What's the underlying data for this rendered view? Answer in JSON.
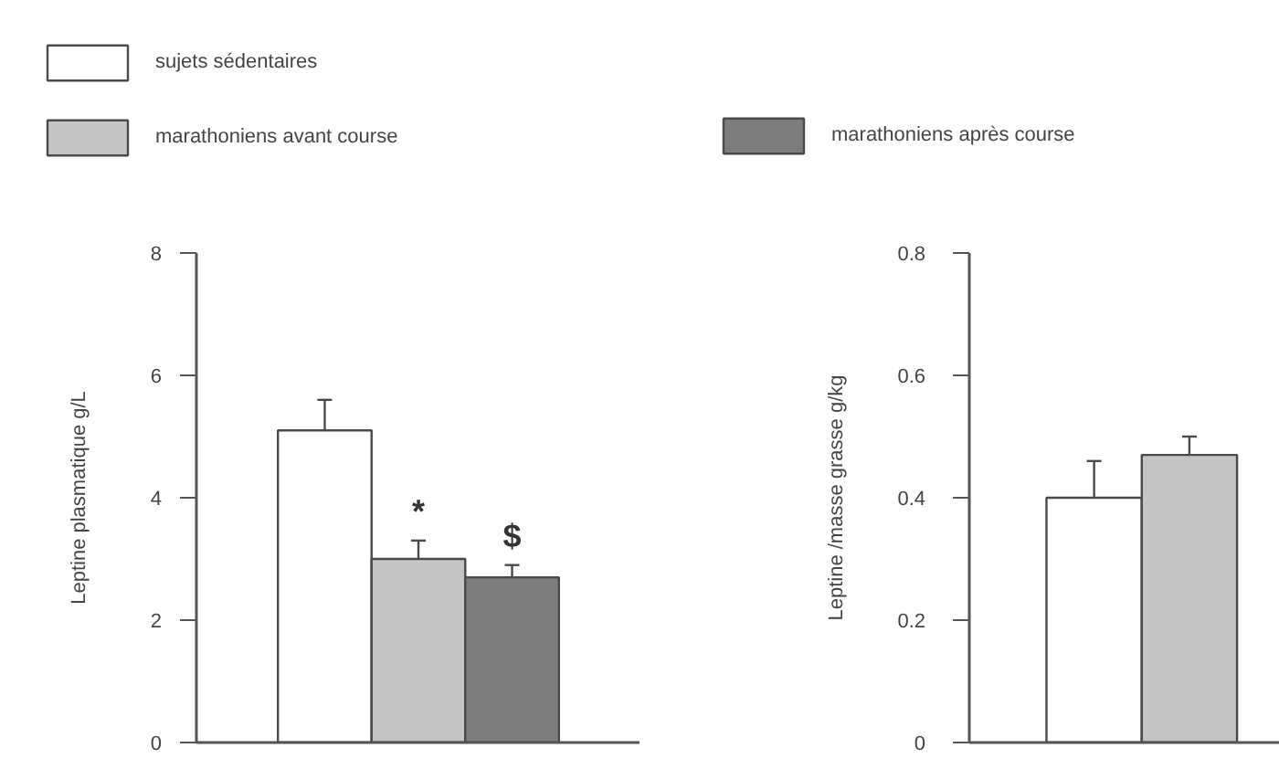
{
  "chart_data": [
    {
      "type": "bar",
      "categories": [
        null
      ],
      "ylabel": "Leptine plasmatique g/L",
      "ylim": [
        0,
        8
      ],
      "yticks": [
        0,
        2,
        4,
        6,
        8
      ],
      "legend": "top left",
      "annotations": [
        "*",
        "$"
      ],
      "series": [
        {
          "name": "sujets sédentaires",
          "color": "#ffffff",
          "values": [
            5.1
          ],
          "errors": [
            0.5
          ]
        },
        {
          "name": "marathoniens avant course",
          "color": "#c4c4c4",
          "values": [
            3.0
          ],
          "errors": [
            0.3
          ]
        },
        {
          "color": "#7d7d7d",
          "values": [
            2.7
          ],
          "errors": [
            0.2
          ]
        }
      ]
    },
    {
      "type": "bar",
      "categories": [
        null
      ],
      "ylabel": "Leptine /masse grasse g/kg",
      "ylim": [
        0,
        0.8
      ],
      "yticks": [
        0,
        0.2,
        0.4,
        0.6,
        0.8
      ],
      "legend": "top left",
      "series": [
        {
          "color": "#ffffff",
          "values": [
            0.4
          ],
          "errors": [
            0.06
          ]
        },
        {
          "color": "#c4c4c4",
          "values": [
            0.47
          ],
          "errors": [
            0.03
          ]
        },
        {
          "name": "marathoniens après course",
          "color": "#7d7d7d",
          "values": [
            null
          ],
          "errors": [
            null
          ]
        }
      ]
    }
  ]
}
